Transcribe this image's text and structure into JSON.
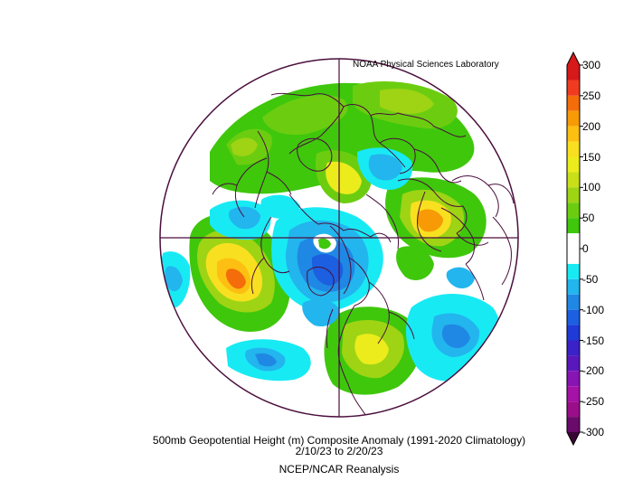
{
  "map": {
    "credit": "NOAA Physical Sciences Laboratory",
    "title": "500mb Geopotential Height (m) Composite Anomaly (1991-2020 Climatology)",
    "dates": "2/10/23   to 2/20/23",
    "source": "NCEP/NCAR Reanalysis",
    "projection": "north-polar-stereographic",
    "colors": {
      "outline": "#4a0e3c",
      "land": "#ffffff"
    }
  },
  "colorbar": {
    "ticks": [
      "300",
      "250",
      "200",
      "150",
      "100",
      "50",
      "0",
      "-50",
      "-100",
      "-150",
      "-200",
      "-250",
      "-300"
    ],
    "bands": [
      {
        "range": [
          275,
          300
        ],
        "color": "#d7191c"
      },
      {
        "range": [
          250,
          275
        ],
        "color": "#f03b20"
      },
      {
        "range": [
          225,
          250
        ],
        "color": "#f46d0a"
      },
      {
        "range": [
          200,
          225
        ],
        "color": "#f79a06"
      },
      {
        "range": [
          175,
          200
        ],
        "color": "#fdbf11"
      },
      {
        "range": [
          150,
          175
        ],
        "color": "#f8e020"
      },
      {
        "range": [
          125,
          150
        ],
        "color": "#ecec1c"
      },
      {
        "range": [
          100,
          125
        ],
        "color": "#c9e018"
      },
      {
        "range": [
          75,
          100
        ],
        "color": "#9ed414"
      },
      {
        "range": [
          50,
          75
        ],
        "color": "#6ccd10"
      },
      {
        "range": [
          25,
          50
        ],
        "color": "#3fc70c"
      },
      {
        "range": [
          -25,
          25
        ],
        "color": "#ffffff"
      },
      {
        "range": [
          -50,
          -25
        ],
        "color": "#18eaf4"
      },
      {
        "range": [
          -75,
          -50
        ],
        "color": "#23b5ee"
      },
      {
        "range": [
          -100,
          -75
        ],
        "color": "#1f88e4"
      },
      {
        "range": [
          -125,
          -100
        ],
        "color": "#1c5fe0"
      },
      {
        "range": [
          -150,
          -125
        ],
        "color": "#1f3ad6"
      },
      {
        "range": [
          -175,
          -150
        ],
        "color": "#3a22c8"
      },
      {
        "range": [
          -200,
          -175
        ],
        "color": "#5a18bc"
      },
      {
        "range": [
          -225,
          -200
        ],
        "color": "#8814b4"
      },
      {
        "range": [
          -250,
          -225
        ],
        "color": "#a412a8"
      },
      {
        "range": [
          -275,
          -250
        ],
        "color": "#9a0e8a"
      },
      {
        "range": [
          -300,
          -275
        ],
        "color": "#6a0a6a"
      }
    ]
  }
}
